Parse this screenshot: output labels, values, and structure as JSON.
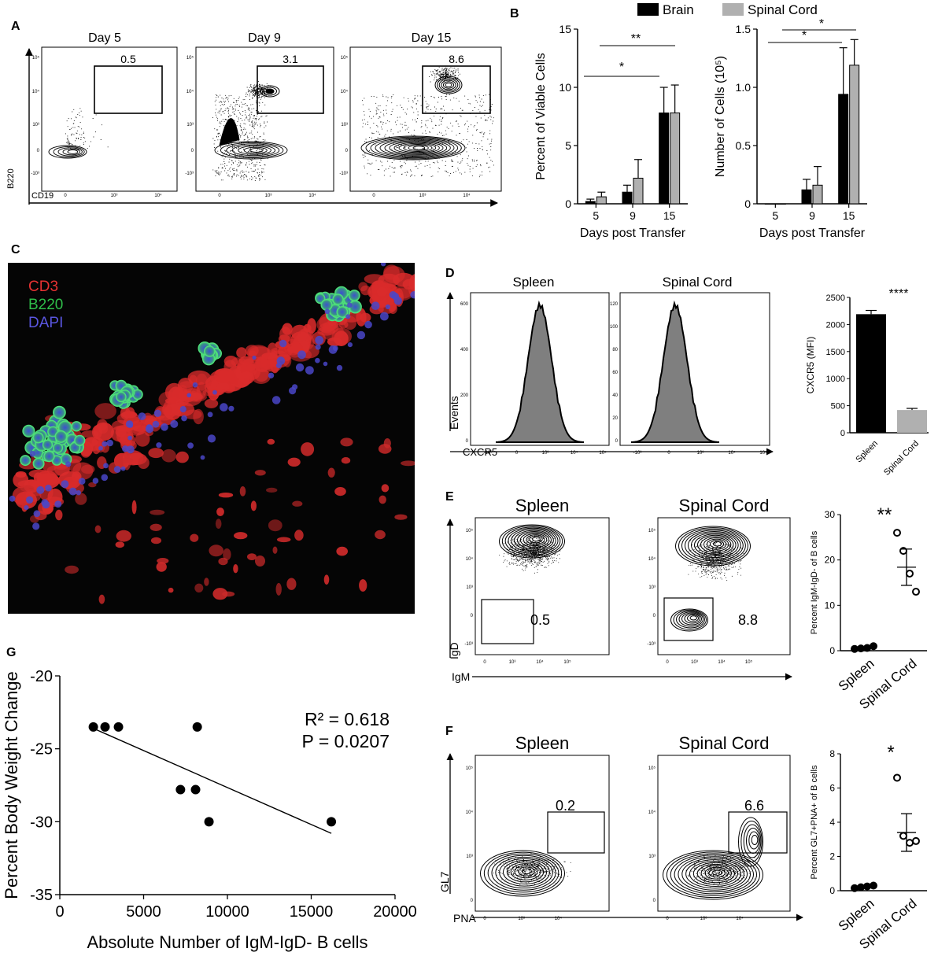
{
  "panels": {
    "A": "A",
    "B": "B",
    "C": "C",
    "D": "D",
    "E": "E",
    "F": "F",
    "G": "G"
  },
  "colors": {
    "brain": "#000000",
    "spinal": "#b0b0b0",
    "cd3": "#e63232",
    "b220": "#2fbf4a",
    "dapi": "#4a46c8",
    "hist_fill": "#7f7f7f"
  },
  "panel_a": {
    "plots": [
      {
        "title": "Day 5",
        "gate": "0.5"
      },
      {
        "title": "Day 9",
        "gate": "3.1"
      },
      {
        "title": "Day 15",
        "gate": "8.6"
      }
    ],
    "y_axis": "B220",
    "x_axis": "CD19",
    "y_ticks": [
      "10⁵",
      "10⁴",
      "10³",
      "0",
      "-10³"
    ],
    "x_ticks": [
      "0",
      "10³",
      "10⁴"
    ]
  },
  "panel_b": {
    "legend": [
      "Brain",
      "Spinal Cord"
    ]
  },
  "panel_c": {
    "stains": [
      "CD3",
      "B220",
      "DAPI"
    ]
  },
  "panel_d": {
    "hist_titles": [
      "Spleen",
      "Spinal Cord"
    ],
    "y_axis": "Events",
    "x_axis": "CXCR5",
    "y_ticks_1": [
      "600",
      "400",
      "200",
      "0"
    ],
    "y_ticks_2": [
      "120",
      "100",
      "80",
      "60",
      "40",
      "20",
      "0"
    ],
    "x_ticks": [
      "-10³",
      "0",
      "10³",
      "10⁴",
      "10⁵"
    ]
  },
  "panel_e": {
    "titles": [
      "Spleen",
      "Spinal Cord"
    ],
    "gates": [
      "0.5",
      "8.8"
    ],
    "y_axis": "IgD",
    "x_axis": "IgM",
    "y_ticks": [
      "10⁵",
      "10⁴",
      "10³",
      "0",
      "-10³"
    ],
    "x_ticks": [
      "0",
      "10³",
      "10⁴",
      "10⁵"
    ]
  },
  "panel_f": {
    "titles": [
      "Spleen",
      "Spinal Cord"
    ],
    "gates": [
      "0.2",
      "6.6"
    ],
    "y_axis": "GL7",
    "x_axis": "PNA",
    "y_ticks": [
      "10⁵",
      "10⁴",
      "10³",
      "0"
    ],
    "x_ticks": [
      "0",
      "10³",
      "10⁴"
    ]
  },
  "chart_data": [
    {
      "type": "bar",
      "id": "B-left",
      "categories": [
        "5",
        "9",
        "15"
      ],
      "series": [
        {
          "name": "Brain",
          "values": [
            0.2,
            1.0,
            7.8
          ],
          "errors": [
            0.2,
            0.6,
            2.2
          ]
        },
        {
          "name": "Spinal Cord",
          "values": [
            0.6,
            2.2,
            7.8
          ],
          "errors": [
            0.4,
            1.6,
            2.4
          ]
        }
      ],
      "xlabel": "Days post Transfer",
      "ylabel": "Percent of Viable Cells",
      "ylim": [
        0,
        15
      ],
      "yticks": [
        "0",
        "5",
        "10",
        "15"
      ],
      "significance": [
        "*",
        "**"
      ]
    },
    {
      "type": "bar",
      "id": "B-right",
      "categories": [
        "5",
        "9",
        "15"
      ],
      "series": [
        {
          "name": "Brain",
          "values": [
            0.0,
            0.12,
            0.94
          ],
          "errors": [
            0.0,
            0.09,
            0.4
          ]
        },
        {
          "name": "Spinal Cord",
          "values": [
            0.0,
            0.16,
            1.19
          ],
          "errors": [
            0.0,
            0.16,
            0.22
          ]
        }
      ],
      "xlabel": "Days post Transfer",
      "ylabel": "Number of Cells (10⁵)",
      "ylim": [
        0,
        1.5
      ],
      "yticks": [
        "0",
        "0.5",
        "1.0",
        "1.5"
      ],
      "significance": [
        "*",
        "*"
      ]
    },
    {
      "type": "bar",
      "id": "D-bar",
      "categories": [
        "Spleen",
        "Spinal Cord"
      ],
      "values": [
        2190,
        420
      ],
      "errors": [
        70,
        30
      ],
      "ylabel": "CXCR5 (MFI)",
      "ylim": [
        0,
        2500
      ],
      "yticks": [
        "0",
        "500",
        "1000",
        "1500",
        "2000",
        "2500"
      ],
      "significance": "****"
    },
    {
      "type": "scatter",
      "id": "E-dot",
      "categories": [
        "Spleen",
        "Spinal Cord"
      ],
      "points": [
        [
          0.4,
          0.5,
          0.6,
          1.0
        ],
        [
          26.0,
          22.0,
          17.0,
          13.0
        ]
      ],
      "mean": [
        0.6,
        18.4
      ],
      "sem": [
        0.15,
        4.0
      ],
      "ylabel": "Percent IgM-IgD- of B cells",
      "ylim": [
        0,
        30
      ],
      "yticks": [
        "0",
        "10",
        "20",
        "30"
      ],
      "significance": "**"
    },
    {
      "type": "scatter",
      "id": "F-dot",
      "categories": [
        "Spleen",
        "Spinal Cord"
      ],
      "points": [
        [
          0.15,
          0.2,
          0.25,
          0.3
        ],
        [
          6.6,
          3.2,
          2.8,
          2.9
        ]
      ],
      "mean": [
        0.2,
        3.4
      ],
      "sem": [
        0.05,
        1.1
      ],
      "ylabel": "Percent GL7+PNA+ of B cells",
      "ylim": [
        0,
        8
      ],
      "yticks": [
        "0",
        "2",
        "4",
        "6",
        "8"
      ],
      "significance": "*"
    },
    {
      "type": "scatter",
      "id": "G",
      "x": [
        2000,
        2700,
        3500,
        7200,
        8100,
        8200,
        8900,
        16200
      ],
      "y": [
        -23.5,
        -23.5,
        -23.5,
        -27.8,
        -27.8,
        -23.5,
        -30.0,
        -30.0
      ],
      "fit": {
        "x": [
          2000,
          16200
        ],
        "y": [
          -23.6,
          -30.8
        ]
      },
      "annotation": [
        "R² = 0.618",
        "P = 0.0207"
      ],
      "xlabel": "Absolute Number of IgM-IgD- B cells",
      "ylabel": "Percent Body Weight Change",
      "xlim": [
        0,
        20000
      ],
      "ylim": [
        -35,
        -20
      ],
      "xticks": [
        "0",
        "5000",
        "10000",
        "15000",
        "20000"
      ],
      "yticks": [
        "-20",
        "-25",
        "-30",
        "-35"
      ]
    }
  ]
}
